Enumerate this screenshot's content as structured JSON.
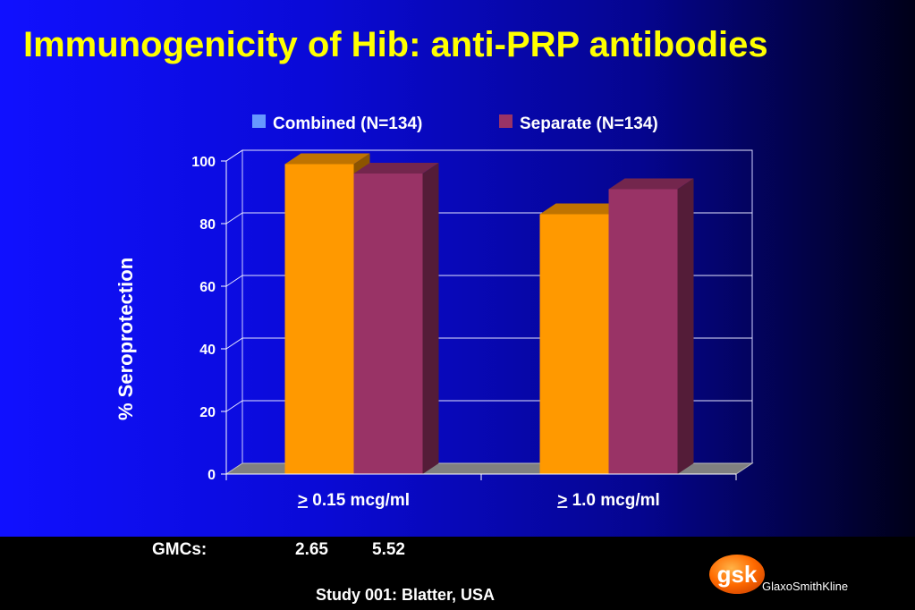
{
  "slide": {
    "title": "Immunogenicity of Hib: anti-PRP antibodies",
    "colors": {
      "title": "#ffff00",
      "background_left": "#1010ff",
      "background_right": "#000018"
    }
  },
  "chart_data": {
    "type": "bar",
    "title": "",
    "ylabel": "%  Seroprotection",
    "xlabel": "",
    "ylim": [
      0,
      100
    ],
    "yticks": [
      "0",
      "20",
      "40",
      "60",
      "80",
      "100"
    ],
    "categories": [
      "> 0.15 mcg/ml",
      "> 1.0 mcg/ml"
    ],
    "category_labels": [
      {
        "symbol": ">",
        "text": " 0.15 mcg/ml"
      },
      {
        "symbol": ">",
        "text": " 1.0 mcg/ml"
      }
    ],
    "series": [
      {
        "name": "Combined (N=134)",
        "values": [
          99,
          83
        ],
        "color": "#ff9900",
        "legend_color": "#6699ff"
      },
      {
        "name": "Separate (N=134)",
        "values": [
          96,
          91
        ],
        "color": "#993366",
        "legend_color": "#993366"
      }
    ],
    "legend_position": "top",
    "grid": true,
    "style": "3d"
  },
  "gmc": {
    "label": "GMCs:",
    "values": [
      "2.65",
      "5.52"
    ]
  },
  "footer": {
    "study": "Study 001: Blatter, USA",
    "logo_text": "gsk",
    "company": "GlaxoSmithKline"
  }
}
